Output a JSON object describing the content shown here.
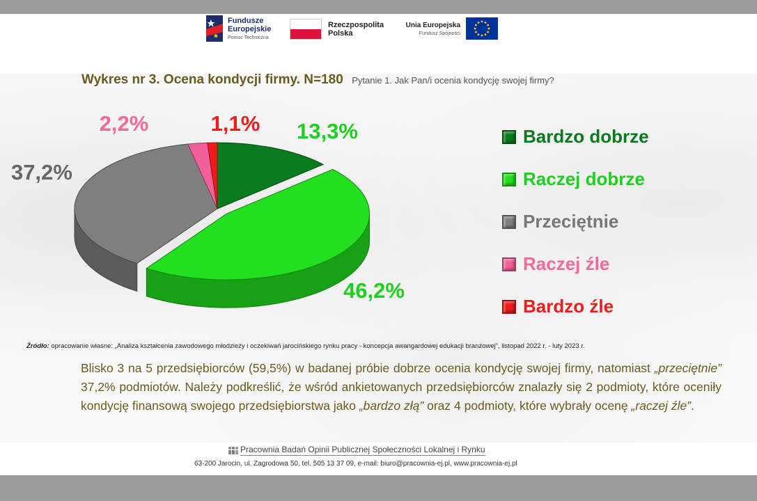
{
  "header": {
    "logo_fe_title": "Fundusze\nEuropejskie",
    "logo_fe_title_line1": "Fundusze",
    "logo_fe_title_line2": "Europejskie",
    "logo_fe_sub": "Pomoc Techniczna",
    "logo_pl_line1": "Rzeczpospolita",
    "logo_pl_line2": "Polska",
    "logo_ue_title": "Unia Europejska",
    "logo_ue_sub": "Fundusz Spójności"
  },
  "chart_data": {
    "type": "pie",
    "title": "Wykres nr 3.  Ocena kondycji firmy. N=180",
    "subtitle": "Pytanie 1. Jak Pan/i ocenia kondycję swojej firmy?",
    "categories": [
      "Bardzo dobrze",
      "Raczej dobrze",
      "Przeciętnie",
      "Raczej źle",
      "Bardzo źle"
    ],
    "values": [
      13.3,
      46.2,
      37.2,
      2.2,
      1.1
    ],
    "labels": [
      "13,3%",
      "46,2%",
      "37,2%",
      "2,2%",
      "1,1%"
    ],
    "colors": [
      "#0a7a1e",
      "#22e01e",
      "#7f7f7f",
      "#f0609a",
      "#ee1c1c"
    ],
    "label_colors": [
      "#1fcf1f",
      "#1fcf1f",
      "#666666",
      "#f06b9a",
      "#ee1c1c"
    ],
    "legend_placement": "right"
  },
  "source": {
    "prefix": "Źródło:",
    "text": " opracowanie własne: „Analiza kształcenia zawodowego młodzieży i oczekiwań jarocińskiego rynku pracy - koncepcja awangardowej edukacji branżowej”, listopad 2022 r. - luty 2023 r."
  },
  "description": {
    "p1": "Blisko 3 na 5 przedsiębiorców (59,5%) w badanej próbie dobrze ocenia kondycję swojej firmy, natomiast ",
    "i1": "„przeciętnie”",
    "p2": " 37,2% podmiotów. Należy podkreślić, że wśród ankietowanych przedsiębiorców znalazły się 2 podmioty, które oceniły kondycję finansową swojego przedsiębiorstwa jako ",
    "i2": "„bardzo złą”",
    "p3": " oraz 4 podmioty, które wybrały ocenę ",
    "i3": "„raczej źle”",
    "p4": "."
  },
  "footer": {
    "title": "Pracownia Badań Opinii Publicznej Społeczności Lokalnej i Rynku",
    "address": "63-200 Jarocin, ul. Zagrodowa 50, tel. 505 13 37 09, e-mail: biuro@pracownia-ej.pl, www.pracownia-ej.pl"
  }
}
